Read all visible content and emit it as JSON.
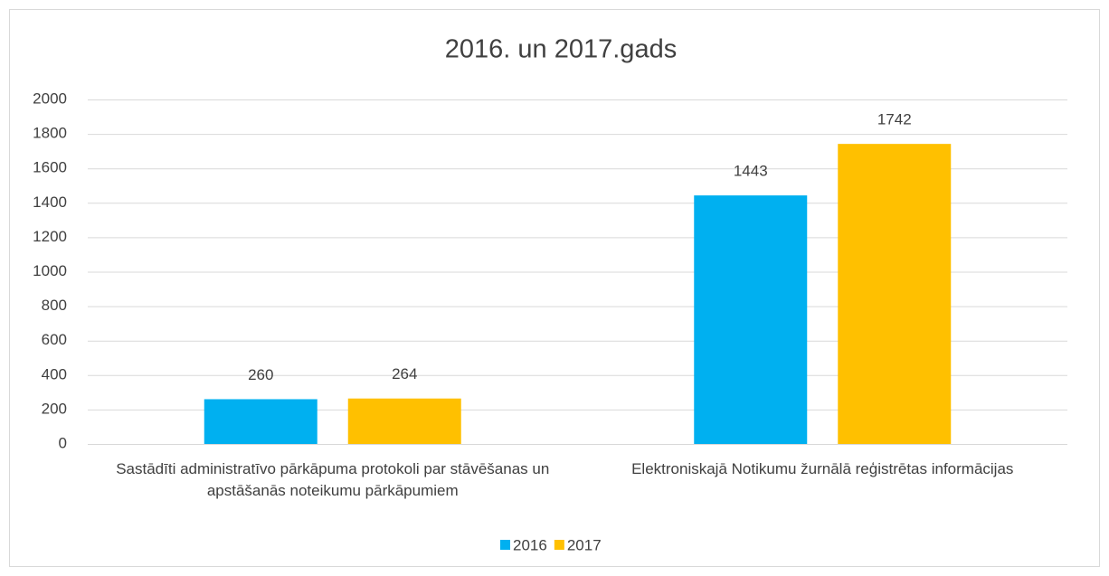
{
  "chart_data": {
    "type": "bar",
    "title": "2016. un 2017.gads",
    "categories": [
      "Sastādīti administratīvo pārkāpuma protokoli par stāvēšanas un apstāšanās noteikumu pārkāpumiem",
      "Elektroniskajā Notikumu žurnālā reģistrētas informācijas"
    ],
    "series": [
      {
        "name": "2016",
        "color": "#00b0f0",
        "values": [
          260,
          1443
        ]
      },
      {
        "name": "2017",
        "color": "#ffc000",
        "values": [
          264,
          1742
        ]
      }
    ],
    "ylim": [
      0,
      2000
    ],
    "yticks": [
      0,
      200,
      400,
      600,
      800,
      1000,
      1200,
      1400,
      1600,
      1800,
      2000
    ],
    "grid": true,
    "legend": "bottom"
  }
}
